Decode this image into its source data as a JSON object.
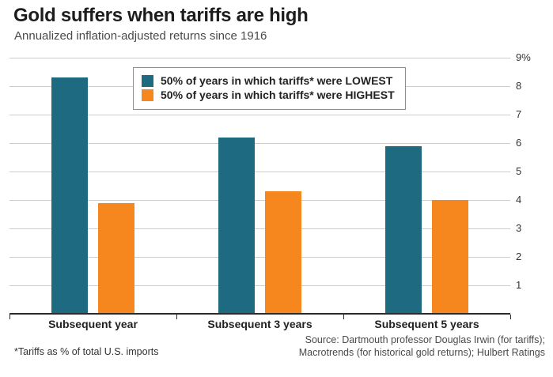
{
  "header": {
    "title": "Gold suffers when tariffs are high",
    "subtitle": "Annualized inflation-adjusted returns since 1916"
  },
  "chart_data": {
    "type": "bar",
    "categories": [
      "Subsequent year",
      "Subsequent 3 years",
      "Subsequent 5 years"
    ],
    "series": [
      {
        "name": "50% of years in which tariffs* were LOWEST",
        "color": "#1e6b81",
        "values": [
          8.3,
          6.2,
          5.9
        ]
      },
      {
        "name": "50% of years in which tariffs* were HIGHEST",
        "color": "#f5871e",
        "values": [
          3.9,
          4.3,
          4.0
        ]
      }
    ],
    "title": "Gold suffers when tariffs are high",
    "xlabel": "",
    "ylabel": "",
    "ylim": [
      0,
      9
    ],
    "ytick_labels": [
      "9%",
      "8",
      "7",
      "6",
      "5",
      "4",
      "3",
      "2",
      "1"
    ],
    "grid": true,
    "legend_position": "top-center"
  },
  "footer": {
    "footnote": "*Tariffs as % of total U.S. imports",
    "source_line1": "Source: Dartmouth professor Douglas Irwin (for tariffs);",
    "source_line2": "Macrotrends (for historical gold returns); Hulbert Ratings"
  }
}
